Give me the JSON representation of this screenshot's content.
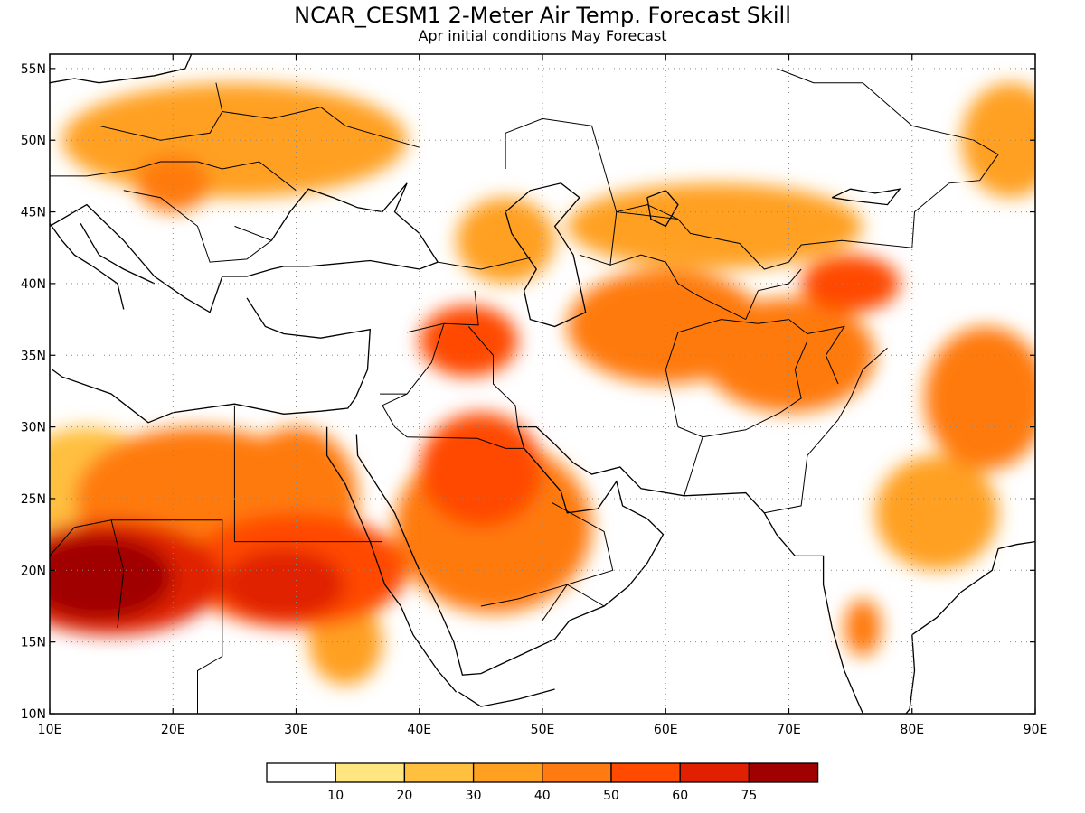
{
  "title": "NCAR_CESM1 2-Meter Air Temp. Forecast Skill",
  "subtitle": "Apr initial conditions  May Forecast",
  "map": {
    "lon_range": [
      10,
      90
    ],
    "lat_range": [
      10,
      56
    ],
    "lon_ticks": [
      10,
      20,
      30,
      40,
      50,
      60,
      70,
      80,
      90
    ],
    "lat_ticks": [
      10,
      15,
      20,
      25,
      30,
      35,
      40,
      45,
      50,
      55
    ],
    "lon_labels": [
      "10E",
      "20E",
      "30E",
      "40E",
      "50E",
      "60E",
      "70E",
      "80E",
      "90E"
    ],
    "lat_labels": [
      "10N",
      "15N",
      "20N",
      "25N",
      "30N",
      "35N",
      "40N",
      "45N",
      "50N",
      "55N"
    ],
    "grid": "dotted"
  },
  "legend": {
    "labels": [
      "10",
      "20",
      "30",
      "40",
      "50",
      "60",
      "75"
    ],
    "colors": [
      "#ffffff",
      "#ffe680",
      "#ffc040",
      "#ffa020",
      "#ff7a10",
      "#ff4a00",
      "#e02000",
      "#a00000"
    ]
  },
  "field": {
    "type": "heatmap",
    "description_levels": [
      0,
      10,
      20,
      30,
      40,
      50,
      60,
      75
    ],
    "blobs": [
      {
        "lon": 14,
        "lat": 19.5,
        "value": 75,
        "rx": 6,
        "ry": 3
      },
      {
        "lon": 15,
        "lat": 19.5,
        "value": 60,
        "rx": 9,
        "ry": 4
      },
      {
        "lon": 29,
        "lat": 19,
        "value": 60,
        "rx": 5,
        "ry": 2.5
      },
      {
        "lon": 30,
        "lat": 20,
        "value": 50,
        "rx": 9,
        "ry": 4
      },
      {
        "lon": 22,
        "lat": 25,
        "value": 40,
        "rx": 10,
        "ry": 5
      },
      {
        "lon": 30,
        "lat": 25,
        "value": 40,
        "rx": 5,
        "ry": 5
      },
      {
        "lon": 45,
        "lat": 27,
        "value": 50,
        "rx": 5,
        "ry": 4
      },
      {
        "lon": 46,
        "lat": 23,
        "value": 40,
        "rx": 8,
        "ry": 6
      },
      {
        "lon": 44,
        "lat": 36,
        "value": 50,
        "rx": 4,
        "ry": 2.5
      },
      {
        "lon": 60,
        "lat": 37,
        "value": 40,
        "rx": 8,
        "ry": 4
      },
      {
        "lon": 75,
        "lat": 40,
        "value": 50,
        "rx": 4,
        "ry": 2
      },
      {
        "lon": 70,
        "lat": 35,
        "value": 40,
        "rx": 7,
        "ry": 4
      },
      {
        "lon": 86,
        "lat": 32,
        "value": 40,
        "rx": 5,
        "ry": 5
      },
      {
        "lon": 25,
        "lat": 50,
        "value": 30,
        "rx": 14,
        "ry": 4
      },
      {
        "lon": 20,
        "lat": 47,
        "value": 40,
        "rx": 3,
        "ry": 2
      },
      {
        "lon": 82,
        "lat": 24,
        "value": 30,
        "rx": 5,
        "ry": 4
      },
      {
        "lon": 76,
        "lat": 16,
        "value": 40,
        "rx": 1.5,
        "ry": 2
      },
      {
        "lon": 47,
        "lat": 43,
        "value": 30,
        "rx": 4,
        "ry": 3
      },
      {
        "lon": 64,
        "lat": 44,
        "value": 30,
        "rx": 12,
        "ry": 3
      },
      {
        "lon": 88,
        "lat": 50,
        "value": 30,
        "rx": 4,
        "ry": 4
      },
      {
        "lon": 13,
        "lat": 26,
        "value": 20,
        "rx": 6,
        "ry": 4
      },
      {
        "lon": 34,
        "lat": 15,
        "value": 30,
        "rx": 3,
        "ry": 3
      }
    ]
  }
}
